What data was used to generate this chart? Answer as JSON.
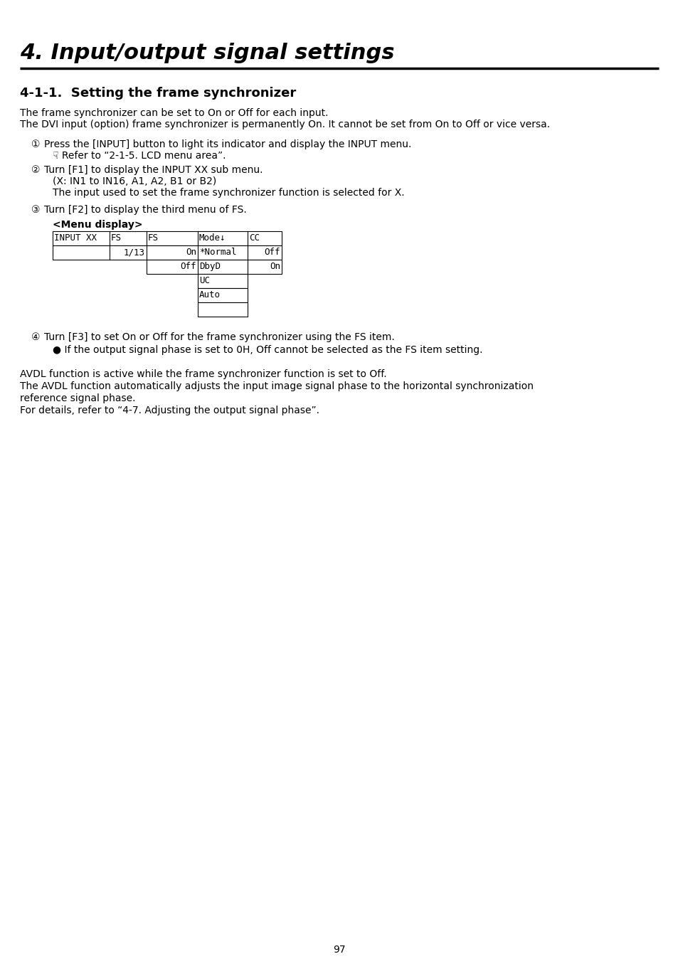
{
  "title": "4. Input/output signal settings",
  "section_title": "4-1-1.  Setting the frame synchronizer",
  "body_text_1": "The frame synchronizer can be set to On or Off for each input.",
  "body_text_2": "The DVI input (option) frame synchronizer is permanently On. It cannot be set from On to Off or vice versa.",
  "step1_circle": "①",
  "step1_text": "Press the [INPUT] button to light its indicator and display the INPUT menu.",
  "step1_sub": "☟ Refer to “2-1-5. LCD menu area”.",
  "step2_circle": "②",
  "step2_text": "Turn [F1] to display the INPUT XX sub menu.",
  "step2_sub1": "(X: IN1 to IN16, A1, A2, B1 or B2)",
  "step2_sub2": "The input used to set the frame synchronizer function is selected for X.",
  "step3_circle": "③",
  "step3_text": "Turn [F2] to display the third menu of FS.",
  "menu_display_label": "<Menu display>",
  "step4_circle": "④",
  "step4_text": "Turn [F3] to set On or Off for the frame synchronizer using the FS item.",
  "step4_bullet": "● If the output signal phase is set to 0H, Off cannot be selected as the FS item setting.",
  "avdl_text1": "AVDL function is active while the frame synchronizer function is set to Off.",
  "avdl_text2": "The AVDL function automatically adjusts the input image signal phase to the horizontal synchronization",
  "avdl_text2b": "reference signal phase.",
  "avdl_text3": "For details, refer to “4-7. Adjusting the output signal phase”.",
  "page_number": "97",
  "bg_color": "#ffffff",
  "text_color": "#000000",
  "title_font_size": 22,
  "section_font_size": 13,
  "body_font_size": 10,
  "step_font_size": 10,
  "mono_font_size": 9
}
